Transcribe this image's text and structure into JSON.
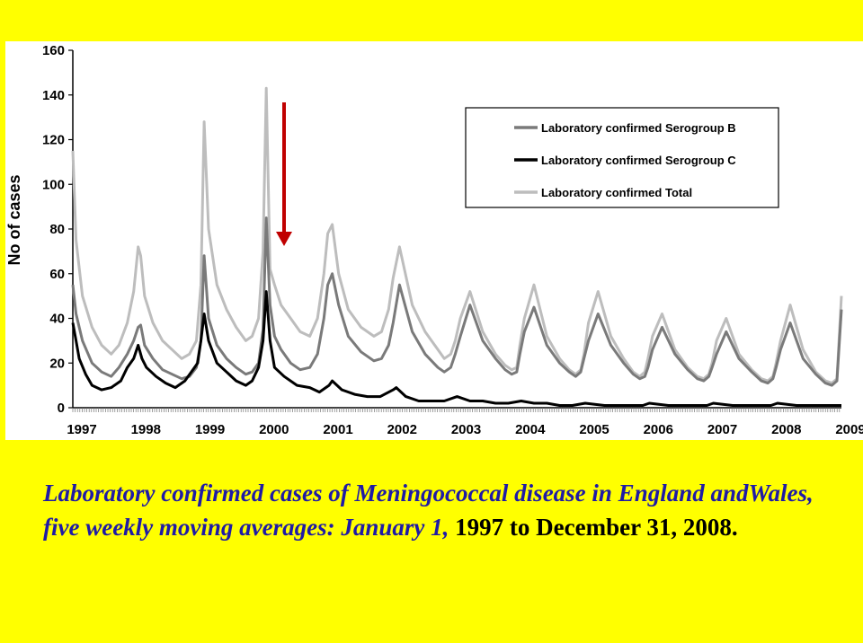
{
  "caption": {
    "italic": "Laboratory confirmed cases of Meningococcal disease in England andWales, five weekly moving averages: January 1,",
    "rest": "1997 to December 31, 2008."
  },
  "chart_data": {
    "type": "line",
    "title": "",
    "xlabel": "",
    "ylabel": "No of cases",
    "xlim": [
      1997,
      2009
    ],
    "ylim": [
      0,
      160
    ],
    "x_ticks": [
      1997,
      1998,
      1999,
      2000,
      2001,
      2002,
      2003,
      2004,
      2005,
      2006,
      2007,
      2008,
      2009
    ],
    "y_ticks": [
      0,
      20,
      40,
      60,
      80,
      100,
      120,
      140,
      160
    ],
    "legend_position": "top-right",
    "grid": false,
    "annotation": "red arrow pointing down at early 2000",
    "series": [
      {
        "name": "Laboratory confirmed Serogroup B",
        "color": "#7a7a7a",
        "x": [
          1997.0,
          1997.05,
          1997.15,
          1997.3,
          1997.45,
          1997.6,
          1997.72,
          1997.85,
          1997.95,
          1998.02,
          1998.06,
          1998.12,
          1998.25,
          1998.4,
          1998.55,
          1998.7,
          1998.82,
          1998.93,
          1999.0,
          1999.05,
          1999.12,
          1999.25,
          1999.4,
          1999.55,
          1999.7,
          1999.8,
          1999.9,
          1999.97,
          2000.02,
          2000.08,
          2000.15,
          2000.25,
          2000.4,
          2000.55,
          2000.7,
          2000.82,
          2000.92,
          2000.98,
          2001.05,
          2001.15,
          2001.3,
          2001.5,
          2001.7,
          2001.82,
          2001.93,
          2002.0,
          2002.1,
          2002.3,
          2002.5,
          2002.7,
          2002.8,
          2002.9,
          2002.97,
          2003.05,
          2003.2,
          2003.4,
          2003.6,
          2003.75,
          2003.85,
          2003.93,
          2003.98,
          2004.05,
          2004.2,
          2004.4,
          2004.6,
          2004.75,
          2004.85,
          2004.93,
          2004.98,
          2005.05,
          2005.2,
          2005.4,
          2005.6,
          2005.75,
          2005.85,
          2005.93,
          2005.98,
          2006.05,
          2006.2,
          2006.4,
          2006.6,
          2006.75,
          2006.85,
          2006.93,
          2006.98,
          2007.05,
          2007.2,
          2007.4,
          2007.6,
          2007.75,
          2007.85,
          2007.93,
          2007.98,
          2008.05,
          2008.2,
          2008.4,
          2008.6,
          2008.75,
          2008.85,
          2008.93,
          2009.0
        ],
        "y": [
          55,
          42,
          30,
          20,
          16,
          14,
          18,
          24,
          30,
          36,
          37,
          28,
          22,
          17,
          15,
          13,
          14,
          18,
          30,
          68,
          40,
          28,
          22,
          18,
          15,
          16,
          20,
          35,
          85,
          46,
          32,
          26,
          20,
          17,
          18,
          24,
          40,
          55,
          60,
          46,
          32,
          25,
          21,
          22,
          28,
          38,
          55,
          34,
          24,
          18,
          16,
          18,
          24,
          32,
          46,
          30,
          22,
          17,
          15,
          16,
          24,
          34,
          45,
          28,
          20,
          16,
          14,
          16,
          22,
          30,
          42,
          28,
          20,
          15,
          13,
          14,
          18,
          26,
          36,
          24,
          17,
          13,
          12,
          14,
          18,
          24,
          34,
          22,
          16,
          12,
          11,
          13,
          18,
          26,
          38,
          22,
          15,
          11,
          10,
          12,
          44
        ]
      },
      {
        "name": "Laboratory confirmed Serogroup C",
        "color": "#000000",
        "x": [
          1997.0,
          1997.05,
          1997.1,
          1997.2,
          1997.3,
          1997.45,
          1997.6,
          1997.75,
          1997.85,
          1997.95,
          1998.02,
          1998.08,
          1998.15,
          1998.3,
          1998.45,
          1998.6,
          1998.75,
          1998.85,
          1998.95,
          1999.0,
          1999.05,
          1999.12,
          1999.25,
          1999.4,
          1999.55,
          1999.7,
          1999.8,
          1999.9,
          1999.97,
          2000.02,
          2000.08,
          2000.15,
          2000.3,
          2000.5,
          2000.7,
          2000.85,
          2001.0,
          2001.05,
          2001.2,
          2001.4,
          2001.6,
          2001.8,
          2002.0,
          2002.05,
          2002.2,
          2002.4,
          2002.6,
          2002.8,
          2003.0,
          2003.2,
          2003.4,
          2003.6,
          2003.8,
          2004.0,
          2004.2,
          2004.4,
          2004.6,
          2004.8,
          2005.0,
          2005.3,
          2005.6,
          2005.9,
          2006.0,
          2006.3,
          2006.6,
          2006.9,
          2007.0,
          2007.3,
          2007.6,
          2007.9,
          2008.0,
          2008.3,
          2008.6,
          2008.9,
          2009.0
        ],
        "y": [
          38,
          30,
          22,
          15,
          10,
          8,
          9,
          12,
          18,
          22,
          28,
          22,
          18,
          14,
          11,
          9,
          12,
          16,
          20,
          30,
          42,
          30,
          20,
          16,
          12,
          10,
          12,
          18,
          30,
          52,
          30,
          18,
          14,
          10,
          9,
          7,
          10,
          12,
          8,
          6,
          5,
          5,
          8,
          9,
          5,
          3,
          3,
          3,
          5,
          3,
          3,
          2,
          2,
          3,
          2,
          2,
          1,
          1,
          2,
          1,
          1,
          1,
          2,
          1,
          1,
          1,
          2,
          1,
          1,
          1,
          2,
          1,
          1,
          1,
          1
        ]
      },
      {
        "name": "Laboratory confirmed Total",
        "color": "#bdbdbd",
        "x": [
          1997.0,
          1997.05,
          1997.15,
          1997.3,
          1997.45,
          1997.6,
          1997.72,
          1997.85,
          1997.95,
          1998.02,
          1998.06,
          1998.12,
          1998.25,
          1998.4,
          1998.55,
          1998.7,
          1998.82,
          1998.93,
          1999.0,
          1999.05,
          1999.12,
          1999.25,
          1999.4,
          1999.55,
          1999.7,
          1999.8,
          1999.9,
          1999.97,
          2000.02,
          2000.08,
          2000.15,
          2000.25,
          2000.4,
          2000.55,
          2000.7,
          2000.82,
          2000.92,
          2000.98,
          2001.05,
          2001.15,
          2001.3,
          2001.5,
          2001.7,
          2001.82,
          2001.93,
          2002.0,
          2002.1,
          2002.3,
          2002.5,
          2002.7,
          2002.8,
          2002.9,
          2002.97,
          2003.05,
          2003.2,
          2003.4,
          2003.6,
          2003.75,
          2003.85,
          2003.93,
          2003.98,
          2004.05,
          2004.2,
          2004.4,
          2004.6,
          2004.75,
          2004.85,
          2004.93,
          2004.98,
          2005.05,
          2005.2,
          2005.4,
          2005.6,
          2005.75,
          2005.85,
          2005.93,
          2005.98,
          2006.05,
          2006.2,
          2006.4,
          2006.6,
          2006.75,
          2006.85,
          2006.93,
          2006.98,
          2007.05,
          2007.2,
          2007.4,
          2007.6,
          2007.75,
          2007.85,
          2007.93,
          2007.98,
          2008.05,
          2008.2,
          2008.4,
          2008.6,
          2008.75,
          2008.85,
          2008.93,
          2009.0
        ],
        "y": [
          115,
          75,
          50,
          36,
          28,
          24,
          28,
          38,
          52,
          72,
          68,
          50,
          38,
          30,
          26,
          22,
          24,
          30,
          55,
          128,
          80,
          55,
          44,
          36,
          30,
          32,
          40,
          70,
          143,
          62,
          55,
          46,
          40,
          34,
          32,
          40,
          60,
          78,
          82,
          60,
          44,
          36,
          32,
          34,
          44,
          58,
          72,
          46,
          34,
          26,
          22,
          24,
          30,
          40,
          52,
          34,
          24,
          19,
          17,
          18,
          28,
          40,
          55,
          32,
          22,
          17,
          15,
          17,
          24,
          38,
          52,
          32,
          22,
          16,
          14,
          16,
          22,
          32,
          42,
          26,
          18,
          14,
          13,
          15,
          20,
          30,
          40,
          24,
          17,
          13,
          12,
          14,
          20,
          30,
          46,
          26,
          16,
          12,
          11,
          13,
          50
        ]
      }
    ]
  }
}
